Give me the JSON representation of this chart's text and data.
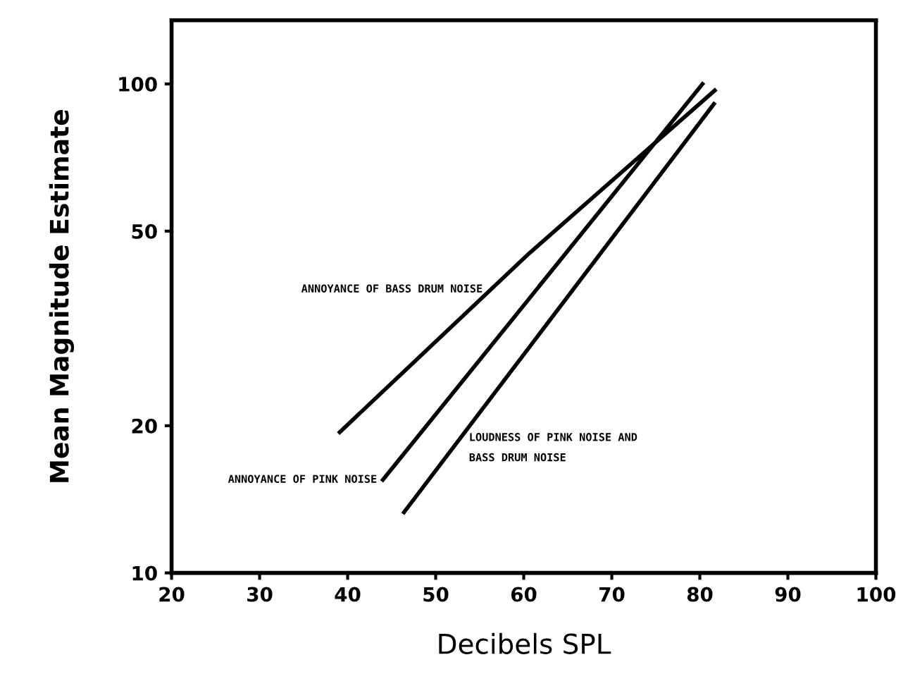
{
  "chart_data": {
    "type": "line",
    "xlabel": "Decibels SPL",
    "ylabel": "Mean Magnitude Estimate",
    "series": [
      {
        "color": "#000000",
        "x": [
          39.1,
          60.6,
          81.7
        ],
        "values": [
          19.4,
          45,
          97
        ]
      },
      {
        "color": "#000000",
        "x": [
          44.0,
          80.3
        ],
        "values": [
          15.5,
          100
        ]
      },
      {
        "color": "#000000",
        "x": [
          46.4,
          81.6
        ],
        "values": [
          13.3,
          91
        ]
      }
    ],
    "annotations": [
      {
        "text": "ANNOYANCE OF BASS DRUM NOISE",
        "x": 56,
        "y": 38
      },
      {
        "text": "ANNOYANCE OF PINK NOISE",
        "x": 44,
        "y": 15.5
      },
      {
        "text": "LOUDNESS OF PINK NOISE AND\nBASS DRUM NOISE",
        "x": 52,
        "y": 18
      }
    ],
    "log": "y",
    "xlim": [
      20,
      100
    ],
    "ylim": [
      10,
      135
    ],
    "xticks": [
      20,
      30,
      40,
      50,
      60,
      70,
      80,
      90,
      100
    ],
    "yticks": [
      10,
      20,
      50,
      100
    ],
    "grid": false,
    "legend": false,
    "marker": "none",
    "line_style": "solid"
  }
}
